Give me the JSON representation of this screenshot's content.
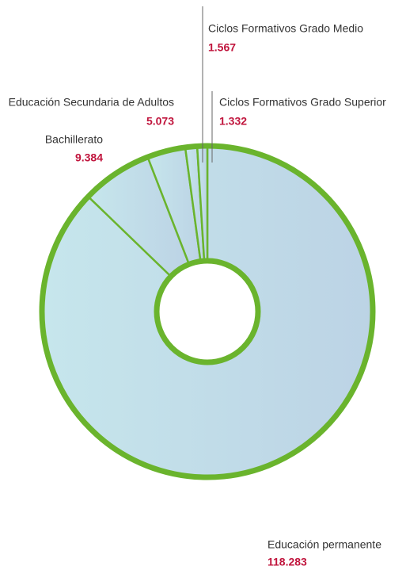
{
  "chart_data": {
    "type": "donut",
    "categories": [
      "Educación permanente",
      "Bachillerato",
      "Educación Secundaria de Adultos",
      "Ciclos Formativos Grado Medio",
      "Ciclos Formativos Grado Superior"
    ],
    "values": [
      118283,
      9384,
      5073,
      1567,
      1332
    ],
    "value_labels": [
      "118.283",
      "9.384",
      "5.073",
      "1.567",
      "1.332"
    ],
    "color": "#6ab42d"
  }
}
